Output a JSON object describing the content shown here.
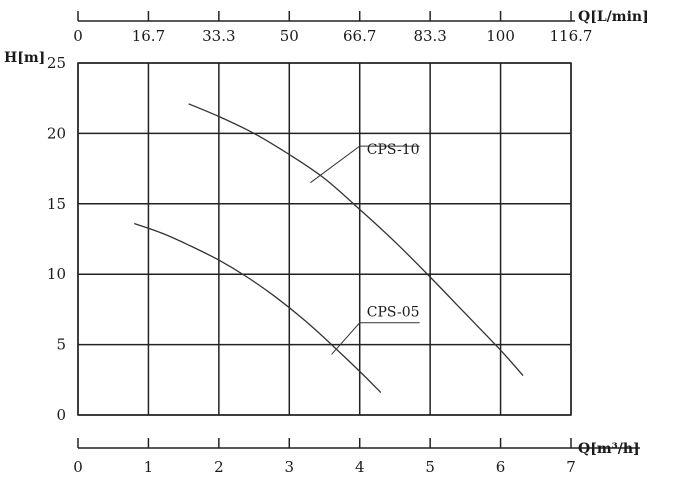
{
  "chart_data": {
    "type": "line",
    "title": "",
    "ylabel": "H[m]",
    "xlabel": "Q[m³/h]",
    "top_axis_label": "Q[L/min]",
    "ylim": [
      0,
      25
    ],
    "xlim": [
      0,
      7
    ],
    "y_ticks": [
      "0",
      "5",
      "10",
      "15",
      "20",
      "25"
    ],
    "x_ticks": [
      "0",
      "1",
      "2",
      "3",
      "4",
      "5",
      "6",
      "7"
    ],
    "top_ticks": [
      "0",
      "16.7",
      "33.3",
      "50",
      "66.7",
      "83.3",
      "100",
      "116.7"
    ],
    "grid": true,
    "series": [
      {
        "name": "CPS-10",
        "x": [
          1.57,
          2.0,
          2.5,
          3.0,
          3.5,
          4.0,
          4.5,
          5.0,
          5.5,
          6.0,
          6.32
        ],
        "y": [
          22.1,
          21.2,
          20.0,
          18.5,
          16.8,
          14.6,
          12.3,
          9.8,
          7.2,
          4.6,
          2.8
        ]
      },
      {
        "name": "CPS-05",
        "x": [
          0.8,
          1.2,
          1.6,
          2.0,
          2.4,
          2.8,
          3.2,
          3.6,
          4.0,
          4.3
        ],
        "y": [
          13.6,
          12.9,
          12.0,
          11.0,
          9.8,
          8.4,
          6.8,
          5.0,
          3.1,
          1.6
        ]
      }
    ]
  }
}
